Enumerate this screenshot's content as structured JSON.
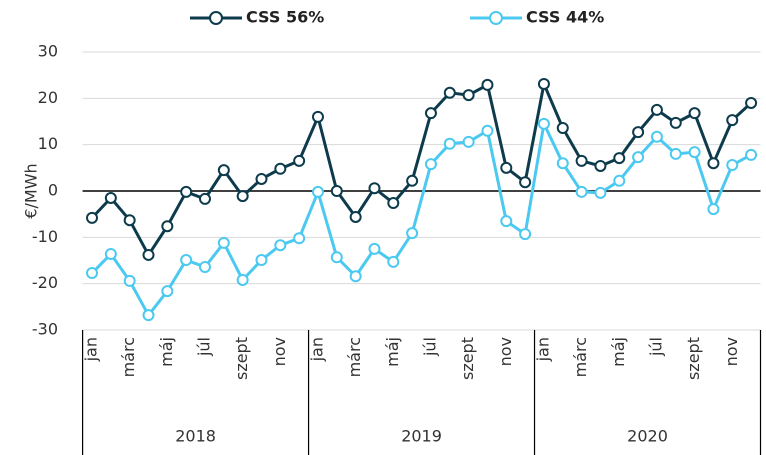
{
  "chart_data": {
    "type": "line",
    "y_label": "€/MWh",
    "categories": [
      "jan",
      null,
      "márc",
      null,
      "máj",
      null,
      "júl",
      null,
      "szept",
      null,
      "nov",
      null,
      "jan",
      null,
      "márc",
      null,
      "máj",
      null,
      "júl",
      null,
      "szept",
      null,
      "nov",
      null,
      "jan",
      null,
      "márc",
      null,
      "máj",
      null,
      "júl",
      null,
      "szept",
      null,
      "nov",
      null
    ],
    "groups": [
      "2018",
      "2019",
      "2020"
    ],
    "series": [
      {
        "name": "CSS 56%",
        "color": "#0d3b4c",
        "values": [
          -5.8,
          -1.5,
          -6.3,
          -13.8,
          -7.6,
          -0.2,
          -1.7,
          4.5,
          -1.1,
          2.6,
          4.8,
          6.5,
          16,
          0,
          -5.6,
          0.6,
          -2.6,
          2.2,
          16.8,
          21.2,
          20.7,
          22.9,
          5,
          1.9,
          23.1,
          13.6,
          6.5,
          5.4,
          7.1,
          12.7,
          17.5,
          14.7,
          16.8,
          6,
          15.3,
          19
        ]
      },
      {
        "name": "CSS 44%",
        "color": "#4cc9f0",
        "values": [
          -17.7,
          -13.6,
          -19.4,
          -26.8,
          -21.6,
          -14.9,
          -16.4,
          -11.2,
          -19.2,
          -14.9,
          -11.7,
          -10.2,
          -0.2,
          -14.3,
          -18.4,
          -12.5,
          -15.3,
          -9.1,
          5.8,
          10.2,
          10.6,
          13,
          -6.5,
          -9.3,
          14.5,
          6,
          -0.2,
          -0.4,
          2.2,
          7.3,
          11.7,
          8,
          8.4,
          -3.9,
          5.6,
          7.8
        ]
      }
    ],
    "ylim": [
      -30,
      30
    ],
    "yticks": [
      -30,
      -20,
      -10,
      0,
      10,
      20,
      30
    ],
    "grid": true,
    "legend": "top"
  }
}
